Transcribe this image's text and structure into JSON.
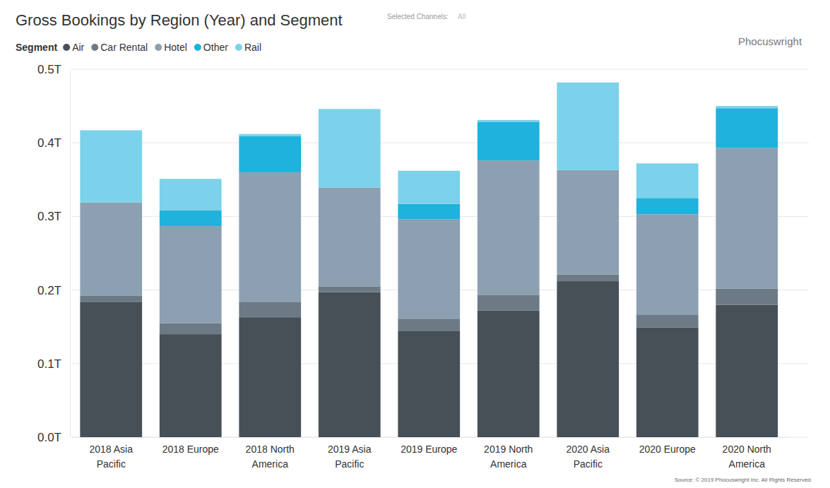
{
  "chart_data": {
    "type": "bar",
    "title": "Gross Bookings by Region (Year) and Segment",
    "filter_label": "Selected Channels:",
    "filter_value": "All",
    "brand": "Phocuswright",
    "source": "Source: © 2019 Phocuswright Inc. All Rights Reserved.",
    "legend_title": "Segment",
    "legend": "top-left",
    "stacked": true,
    "grid": true,
    "categories": [
      "2018 Asia Pacific",
      "2018 Europe",
      "2018 North America",
      "2019 Asia Pacific",
      "2019 Europe",
      "2019 North America",
      "2020 Asia Pacific",
      "2020 Europe",
      "2020 North America"
    ],
    "series": [
      {
        "name": "Air",
        "color": "#474f57",
        "values": [
          0.184,
          0.14,
          0.163,
          0.197,
          0.144,
          0.172,
          0.212,
          0.149,
          0.18
        ]
      },
      {
        "name": "Car Rental",
        "color": "#6c7a86",
        "values": [
          0.008,
          0.015,
          0.021,
          0.008,
          0.017,
          0.021,
          0.009,
          0.017,
          0.022
        ]
      },
      {
        "name": "Hotel",
        "color": "#8ca0b2",
        "values": [
          0.127,
          0.132,
          0.176,
          0.134,
          0.135,
          0.183,
          0.142,
          0.137,
          0.191
        ]
      },
      {
        "name": "Other",
        "color": "#1eb2dc",
        "values": [
          0,
          0.021,
          0.049,
          0,
          0.021,
          0.052,
          0,
          0.022,
          0.054
        ]
      },
      {
        "name": "Rail",
        "color": "#7bd2ea",
        "values": [
          0.098,
          0.043,
          0.003,
          0.107,
          0.045,
          0.003,
          0.119,
          0.047,
          0.003
        ]
      }
    ],
    "ylim": [
      0,
      0.5
    ],
    "yticks": [
      {
        "value": 0,
        "label": "0.0T"
      },
      {
        "value": 0.1,
        "label": "0.1T"
      },
      {
        "value": 0.2,
        "label": "0.2T"
      },
      {
        "value": 0.3,
        "label": "0.3T"
      },
      {
        "value": 0.4,
        "label": "0.4T"
      },
      {
        "value": 0.5,
        "label": "0.5T"
      }
    ]
  }
}
